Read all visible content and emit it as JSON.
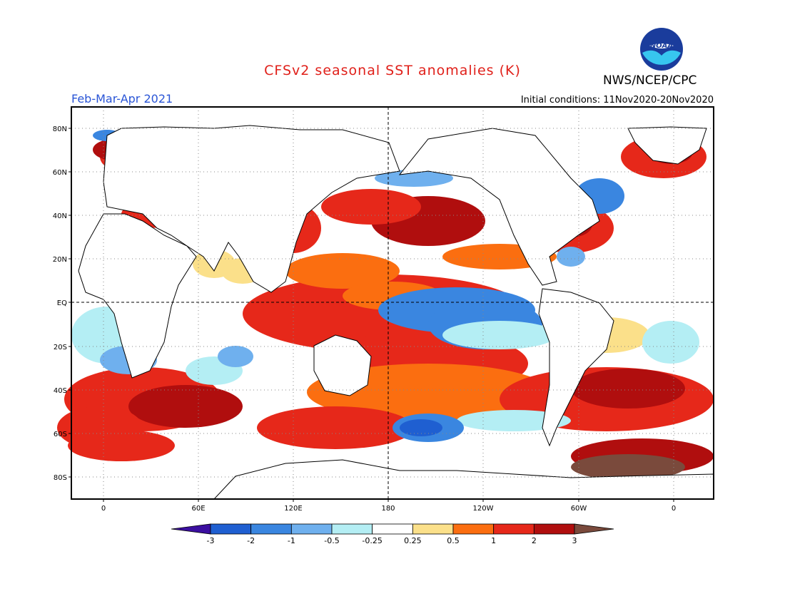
{
  "header": {
    "title": "CFSv2 seasonal SST anomalies (K)",
    "agency": "NWS/NCEP/CPC",
    "period": "Feb-Mar-Apr 2021",
    "initial_conditions": "Initial conditions: 11Nov2020-20Nov2020",
    "logo_text": "NOAA"
  },
  "colors": {
    "title": "#e0201a",
    "period": "#2a55d6",
    "frame": "#000000"
  },
  "map": {
    "lat_labels": [
      "80N",
      "60N",
      "40N",
      "20N",
      "EQ",
      "20S",
      "40S",
      "60S",
      "80S"
    ],
    "lon_labels": [
      "0",
      "60E",
      "120E",
      "180",
      "120W",
      "60W",
      "0"
    ]
  },
  "legend": {
    "tick_labels": [
      "-3",
      "-2",
      "-1",
      "-0.5",
      "-0.25",
      "0.25",
      "0.5",
      "1",
      "2",
      "3"
    ],
    "colors": [
      "#3b0fa0",
      "#1f5fd1",
      "#3a86e0",
      "#6fb0ee",
      "#b4eef4",
      "#ffffff",
      "#fbe08a",
      "#fb6e10",
      "#e6281a",
      "#b00e0e",
      "#7a4a3c"
    ]
  }
}
